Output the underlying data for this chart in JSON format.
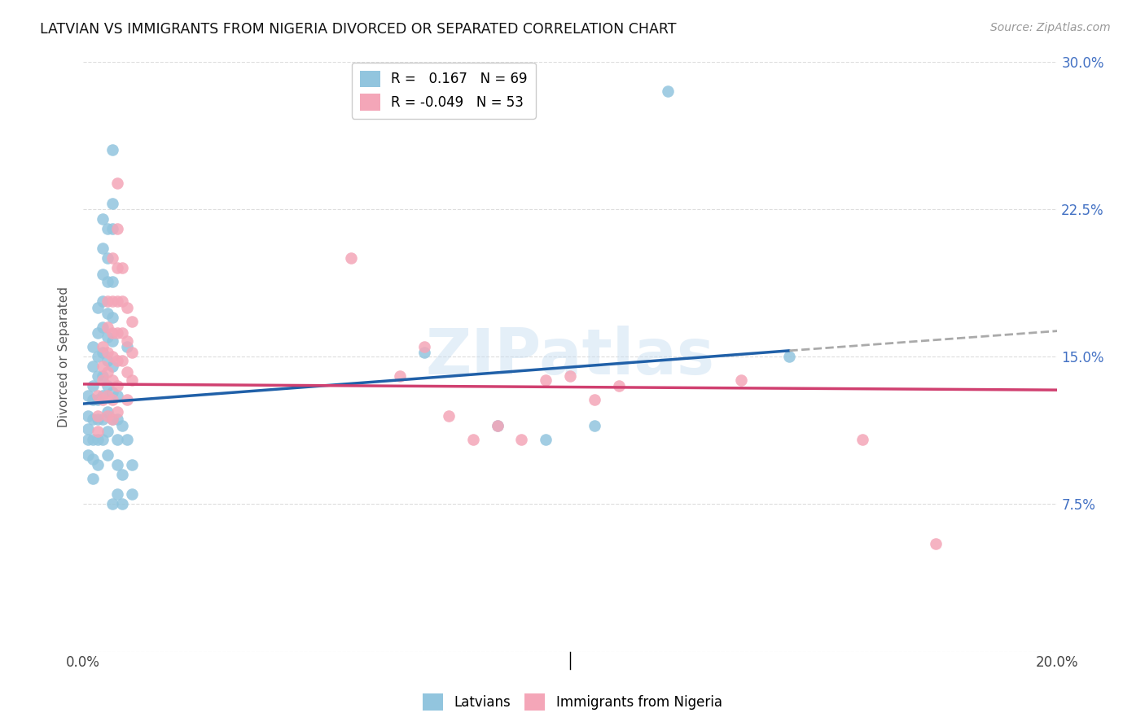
{
  "title": "LATVIAN VS IMMIGRANTS FROM NIGERIA DIVORCED OR SEPARATED CORRELATION CHART",
  "source": "Source: ZipAtlas.com",
  "ylabel": "Divorced or Separated",
  "xlim": [
    0.0,
    0.2
  ],
  "ylim": [
    0.0,
    0.3
  ],
  "ytick_vals": [
    0.0,
    0.075,
    0.15,
    0.225,
    0.3
  ],
  "ytick_labels": [
    "",
    "7.5%",
    "15.0%",
    "22.5%",
    "30.0%"
  ],
  "xtick_vals": [
    0.0,
    0.05,
    0.1,
    0.15,
    0.2
  ],
  "xtick_labels": [
    "0.0%",
    "",
    "",
    "",
    "20.0%"
  ],
  "R_latvian": 0.167,
  "N_latvian": 69,
  "R_nigeria": -0.049,
  "N_nigeria": 53,
  "color_latvian": "#92C5DE",
  "color_nigeria": "#F4A6B8",
  "line_color_latvian": "#2060A8",
  "line_color_nigeria": "#D04070",
  "grid_color": "#DDDDDD",
  "latvian_points": [
    [
      0.001,
      0.13
    ],
    [
      0.001,
      0.12
    ],
    [
      0.001,
      0.113
    ],
    [
      0.001,
      0.108
    ],
    [
      0.001,
      0.1
    ],
    [
      0.002,
      0.155
    ],
    [
      0.002,
      0.145
    ],
    [
      0.002,
      0.135
    ],
    [
      0.002,
      0.128
    ],
    [
      0.002,
      0.118
    ],
    [
      0.002,
      0.108
    ],
    [
      0.002,
      0.098
    ],
    [
      0.002,
      0.088
    ],
    [
      0.003,
      0.175
    ],
    [
      0.003,
      0.162
    ],
    [
      0.003,
      0.15
    ],
    [
      0.003,
      0.14
    ],
    [
      0.003,
      0.128
    ],
    [
      0.003,
      0.118
    ],
    [
      0.003,
      0.108
    ],
    [
      0.003,
      0.095
    ],
    [
      0.004,
      0.22
    ],
    [
      0.004,
      0.205
    ],
    [
      0.004,
      0.192
    ],
    [
      0.004,
      0.178
    ],
    [
      0.004,
      0.165
    ],
    [
      0.004,
      0.152
    ],
    [
      0.004,
      0.14
    ],
    [
      0.004,
      0.13
    ],
    [
      0.004,
      0.118
    ],
    [
      0.004,
      0.108
    ],
    [
      0.005,
      0.215
    ],
    [
      0.005,
      0.2
    ],
    [
      0.005,
      0.188
    ],
    [
      0.005,
      0.172
    ],
    [
      0.005,
      0.16
    ],
    [
      0.005,
      0.148
    ],
    [
      0.005,
      0.135
    ],
    [
      0.005,
      0.122
    ],
    [
      0.005,
      0.112
    ],
    [
      0.005,
      0.1
    ],
    [
      0.006,
      0.255
    ],
    [
      0.006,
      0.228
    ],
    [
      0.006,
      0.215
    ],
    [
      0.006,
      0.188
    ],
    [
      0.006,
      0.17
    ],
    [
      0.006,
      0.158
    ],
    [
      0.006,
      0.145
    ],
    [
      0.006,
      0.132
    ],
    [
      0.006,
      0.118
    ],
    [
      0.006,
      0.075
    ],
    [
      0.007,
      0.08
    ],
    [
      0.007,
      0.095
    ],
    [
      0.007,
      0.108
    ],
    [
      0.007,
      0.118
    ],
    [
      0.007,
      0.13
    ],
    [
      0.008,
      0.115
    ],
    [
      0.008,
      0.09
    ],
    [
      0.008,
      0.075
    ],
    [
      0.009,
      0.155
    ],
    [
      0.009,
      0.108
    ],
    [
      0.01,
      0.095
    ],
    [
      0.01,
      0.08
    ],
    [
      0.07,
      0.152
    ],
    [
      0.085,
      0.115
    ],
    [
      0.095,
      0.108
    ],
    [
      0.105,
      0.115
    ],
    [
      0.12,
      0.285
    ],
    [
      0.145,
      0.15
    ]
  ],
  "nigeria_points": [
    [
      0.003,
      0.13
    ],
    [
      0.003,
      0.12
    ],
    [
      0.003,
      0.112
    ],
    [
      0.004,
      0.155
    ],
    [
      0.004,
      0.145
    ],
    [
      0.004,
      0.138
    ],
    [
      0.004,
      0.128
    ],
    [
      0.005,
      0.178
    ],
    [
      0.005,
      0.165
    ],
    [
      0.005,
      0.152
    ],
    [
      0.005,
      0.142
    ],
    [
      0.005,
      0.13
    ],
    [
      0.005,
      0.12
    ],
    [
      0.006,
      0.2
    ],
    [
      0.006,
      0.178
    ],
    [
      0.006,
      0.162
    ],
    [
      0.006,
      0.15
    ],
    [
      0.006,
      0.138
    ],
    [
      0.006,
      0.128
    ],
    [
      0.006,
      0.118
    ],
    [
      0.007,
      0.238
    ],
    [
      0.007,
      0.215
    ],
    [
      0.007,
      0.195
    ],
    [
      0.007,
      0.178
    ],
    [
      0.007,
      0.162
    ],
    [
      0.007,
      0.148
    ],
    [
      0.007,
      0.135
    ],
    [
      0.007,
      0.122
    ],
    [
      0.008,
      0.195
    ],
    [
      0.008,
      0.178
    ],
    [
      0.008,
      0.162
    ],
    [
      0.008,
      0.148
    ],
    [
      0.009,
      0.175
    ],
    [
      0.009,
      0.158
    ],
    [
      0.009,
      0.142
    ],
    [
      0.009,
      0.128
    ],
    [
      0.01,
      0.168
    ],
    [
      0.01,
      0.152
    ],
    [
      0.01,
      0.138
    ],
    [
      0.055,
      0.2
    ],
    [
      0.065,
      0.14
    ],
    [
      0.07,
      0.155
    ],
    [
      0.075,
      0.12
    ],
    [
      0.08,
      0.108
    ],
    [
      0.085,
      0.115
    ],
    [
      0.09,
      0.108
    ],
    [
      0.095,
      0.138
    ],
    [
      0.1,
      0.14
    ],
    [
      0.105,
      0.128
    ],
    [
      0.11,
      0.135
    ],
    [
      0.135,
      0.138
    ],
    [
      0.16,
      0.108
    ],
    [
      0.175,
      0.055
    ]
  ]
}
